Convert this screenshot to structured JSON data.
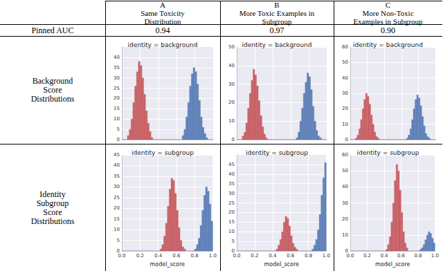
{
  "table": {
    "columns": [
      {
        "letter": "A",
        "title": [
          "Same Toxicity",
          "Distribution"
        ]
      },
      {
        "letter": "B",
        "title": [
          "More Toxic Examples in",
          "Subgroup"
        ]
      },
      {
        "letter": "C",
        "title": [
          "More Non-Toxic",
          "Examples in Subgroup"
        ]
      }
    ],
    "row_labels": [
      [
        "Pinned AUC"
      ],
      [
        "Background",
        "Score",
        "Distributions"
      ],
      [
        "Identity",
        "Subgroup",
        "Score",
        "Distributions"
      ]
    ],
    "pinned_auc": [
      0.94,
      0.97,
      {
        "value": 0.9,
        "label": "0.90"
      }
    ]
  },
  "chart_data": [
    {
      "type": "histogram",
      "title": "identity = background",
      "tick_labels": "y",
      "grid": true,
      "bins": [
        0,
        0.02,
        0.04,
        0.06,
        0.08,
        0.1,
        0.12,
        0.14,
        0.16,
        0.18,
        0.2,
        0.22,
        0.24,
        0.26,
        0.28,
        0.3,
        0.32,
        0.34,
        0.36,
        0.38,
        0.4,
        0.42,
        0.44,
        0.46,
        0.48,
        0.5,
        0.52,
        0.54,
        0.56,
        0.58,
        0.6,
        0.62,
        0.64,
        0.66,
        0.68,
        0.7,
        0.72,
        0.74,
        0.76,
        0.78,
        0.8,
        0.82,
        0.84,
        0.86,
        0.88,
        0.9,
        0.92,
        0.94,
        0.96,
        0.98,
        1
      ],
      "xlim": [
        0,
        1
      ],
      "xticks": [
        {
          "value": 0,
          "label": "0.0"
        },
        0.2,
        0.4,
        0.6,
        0.8,
        {
          "value": 1,
          "label": "1.0"
        }
      ],
      "ylim": [
        0,
        45
      ],
      "yticks": [
        0,
        5,
        10,
        15,
        20,
        25,
        30,
        35,
        40
      ],
      "series": [
        {
          "color": "#c44e52",
          "values": [
            0,
            0,
            0,
            2,
            5,
            10,
            18,
            26,
            33,
            38,
            36,
            30,
            22,
            14,
            8,
            4,
            1,
            0,
            0,
            0,
            0,
            0,
            0,
            0,
            0,
            0,
            0,
            0,
            0,
            0,
            0,
            0,
            0,
            0,
            0,
            0,
            0,
            0,
            0,
            0,
            0,
            0,
            0,
            0,
            0,
            0,
            0,
            0,
            0,
            0
          ]
        },
        {
          "color": "#4c72b0",
          "values": [
            0,
            0,
            0,
            0,
            0,
            0,
            0,
            0,
            0,
            0,
            0,
            0,
            0,
            0,
            0,
            0,
            0,
            0,
            0,
            0,
            0,
            0,
            0,
            0,
            0,
            0,
            0,
            0,
            0,
            0,
            0,
            0,
            0,
            2,
            5,
            11,
            18,
            26,
            32,
            35,
            33,
            27,
            19,
            11,
            6,
            3,
            1,
            0,
            0,
            0
          ]
        }
      ]
    },
    {
      "type": "histogram",
      "title": "identity = subgroup",
      "tick_labels": true,
      "grid": true,
      "xlabel": "model_score",
      "bins": [
        0,
        0.02,
        0.04,
        0.06,
        0.08,
        0.1,
        0.12,
        0.14,
        0.16,
        0.18,
        0.2,
        0.22,
        0.24,
        0.26,
        0.28,
        0.3,
        0.32,
        0.34,
        0.36,
        0.38,
        0.4,
        0.42,
        0.44,
        0.46,
        0.48,
        0.5,
        0.52,
        0.54,
        0.56,
        0.58,
        0.6,
        0.62,
        0.64,
        0.66,
        0.68,
        0.7,
        0.72,
        0.74,
        0.76,
        0.78,
        0.8,
        0.82,
        0.84,
        0.86,
        0.88,
        0.9,
        0.92,
        0.94,
        0.96,
        0.98,
        1
      ],
      "xlim": [
        0,
        1
      ],
      "xticks": [
        {
          "value": 0,
          "label": "0.0"
        },
        0.2,
        0.4,
        0.6,
        0.8,
        {
          "value": 1,
          "label": "1.0"
        }
      ],
      "ylim": [
        0,
        45
      ],
      "yticks": [
        0,
        5,
        10,
        15,
        20,
        25,
        30,
        35,
        40,
        45
      ],
      "series": [
        {
          "color": "#c44e52",
          "values": [
            0,
            0,
            0,
            0,
            0,
            0,
            0,
            0,
            0,
            0,
            0,
            0,
            0,
            0,
            0,
            0,
            0,
            0,
            0,
            0,
            0,
            1,
            3,
            7,
            13,
            21,
            29,
            34,
            33,
            27,
            19,
            11,
            5,
            2,
            1,
            0,
            0,
            0,
            0,
            0,
            0,
            0,
            0,
            0,
            0,
            0,
            0,
            0,
            0,
            0
          ]
        },
        {
          "color": "#4c72b0",
          "values": [
            0,
            0,
            0,
            0,
            0,
            0,
            0,
            0,
            0,
            0,
            0,
            0,
            0,
            0,
            0,
            0,
            0,
            0,
            0,
            0,
            0,
            0,
            0,
            0,
            0,
            0,
            0,
            0,
            0,
            0,
            0,
            0,
            0,
            0,
            0,
            0,
            0,
            0,
            0,
            0,
            1,
            3,
            6,
            12,
            19,
            26,
            30,
            28,
            22,
            14
          ]
        }
      ]
    },
    {
      "type": "histogram",
      "title": "identity = background",
      "tick_labels": "y",
      "grid": true,
      "bins": [
        0,
        0.02,
        0.04,
        0.06,
        0.08,
        0.1,
        0.12,
        0.14,
        0.16,
        0.18,
        0.2,
        0.22,
        0.24,
        0.26,
        0.28,
        0.3,
        0.32,
        0.34,
        0.36,
        0.38,
        0.4,
        0.42,
        0.44,
        0.46,
        0.48,
        0.5,
        0.52,
        0.54,
        0.56,
        0.58,
        0.6,
        0.62,
        0.64,
        0.66,
        0.68,
        0.7,
        0.72,
        0.74,
        0.76,
        0.78,
        0.8,
        0.82,
        0.84,
        0.86,
        0.88,
        0.9,
        0.92,
        0.94,
        0.96,
        0.98,
        1
      ],
      "xlim": [
        0,
        1
      ],
      "xticks": [
        {
          "value": 0,
          "label": "0.0"
        },
        0.2,
        0.4,
        0.6,
        0.8,
        {
          "value": 1,
          "label": "1.0"
        }
      ],
      "ylim": [
        0,
        50
      ],
      "yticks": [
        0,
        10,
        20,
        30,
        40,
        50
      ],
      "series": [
        {
          "color": "#c44e52",
          "values": [
            0,
            0,
            0,
            2,
            4,
            9,
            17,
            25,
            32,
            38,
            35,
            29,
            21,
            13,
            7,
            3,
            1,
            0,
            0,
            0,
            0,
            0,
            0,
            0,
            0,
            0,
            0,
            0,
            0,
            0,
            0,
            0,
            0,
            0,
            0,
            0,
            0,
            0,
            0,
            0,
            0,
            0,
            0,
            0,
            0,
            0,
            0,
            0,
            0,
            0
          ]
        },
        {
          "color": "#4c72b0",
          "values": [
            0,
            0,
            0,
            0,
            0,
            0,
            0,
            0,
            0,
            0,
            0,
            0,
            0,
            0,
            0,
            0,
            0,
            0,
            0,
            0,
            0,
            0,
            0,
            0,
            0,
            0,
            0,
            0,
            0,
            0,
            0,
            0,
            0,
            1,
            4,
            10,
            17,
            25,
            31,
            36,
            34,
            27,
            18,
            10,
            5,
            2,
            1,
            0,
            0,
            0
          ]
        }
      ]
    },
    {
      "type": "histogram",
      "title": "identity = subgroup",
      "tick_labels": true,
      "grid": true,
      "xlabel": "model_score",
      "bins": [
        0,
        0.02,
        0.04,
        0.06,
        0.08,
        0.1,
        0.12,
        0.14,
        0.16,
        0.18,
        0.2,
        0.22,
        0.24,
        0.26,
        0.28,
        0.3,
        0.32,
        0.34,
        0.36,
        0.38,
        0.4,
        0.42,
        0.44,
        0.46,
        0.48,
        0.5,
        0.52,
        0.54,
        0.56,
        0.58,
        0.6,
        0.62,
        0.64,
        0.66,
        0.68,
        0.7,
        0.72,
        0.74,
        0.76,
        0.78,
        0.8,
        0.82,
        0.84,
        0.86,
        0.88,
        0.9,
        0.92,
        0.94,
        0.96,
        0.98,
        1
      ],
      "xlim": [
        0,
        1
      ],
      "xticks": [
        {
          "value": 0,
          "label": "0.0"
        },
        0.2,
        0.4,
        0.6,
        0.8,
        {
          "value": 1,
          "label": "1.0"
        }
      ],
      "ylim": [
        0,
        50
      ],
      "yticks": [
        0,
        5,
        10,
        15,
        20,
        25,
        30,
        35,
        40,
        45
      ],
      "series": [
        {
          "color": "#c44e52",
          "values": [
            0,
            0,
            0,
            0,
            0,
            0,
            0,
            0,
            0,
            0,
            0,
            0,
            0,
            0,
            0,
            0,
            0,
            0,
            0,
            0,
            0,
            0,
            1,
            3,
            6,
            10,
            15,
            18,
            17,
            13,
            8,
            4,
            2,
            1,
            0,
            0,
            0,
            0,
            0,
            0,
            0,
            0,
            0,
            0,
            0,
            0,
            0,
            0,
            0,
            0
          ]
        },
        {
          "color": "#4c72b0",
          "values": [
            0,
            0,
            0,
            0,
            0,
            0,
            0,
            0,
            0,
            0,
            0,
            0,
            0,
            0,
            0,
            0,
            0,
            0,
            0,
            0,
            0,
            0,
            0,
            0,
            0,
            0,
            0,
            0,
            0,
            0,
            0,
            0,
            0,
            0,
            0,
            0,
            0,
            0,
            0,
            0,
            0,
            0,
            1,
            3,
            6,
            11,
            19,
            29,
            38,
            46
          ]
        }
      ]
    },
    {
      "type": "histogram",
      "title": "identity = background",
      "tick_labels": "y",
      "grid": true,
      "bins": [
        0,
        0.02,
        0.04,
        0.06,
        0.08,
        0.1,
        0.12,
        0.14,
        0.16,
        0.18,
        0.2,
        0.22,
        0.24,
        0.26,
        0.28,
        0.3,
        0.32,
        0.34,
        0.36,
        0.38,
        0.4,
        0.42,
        0.44,
        0.46,
        0.48,
        0.5,
        0.52,
        0.54,
        0.56,
        0.58,
        0.6,
        0.62,
        0.64,
        0.66,
        0.68,
        0.7,
        0.72,
        0.74,
        0.76,
        0.78,
        0.8,
        0.82,
        0.84,
        0.86,
        0.88,
        0.9,
        0.92,
        0.94,
        0.96,
        0.98,
        1
      ],
      "xlim": [
        0,
        1
      ],
      "xticks": [
        {
          "value": 0,
          "label": "0.0"
        },
        0.2,
        0.4,
        0.6,
        0.8,
        {
          "value": 1,
          "label": "1.0"
        }
      ],
      "ylim": [
        0,
        60
      ],
      "yticks": [
        0,
        10,
        20,
        30,
        40,
        50,
        60
      ],
      "series": [
        {
          "color": "#c44e52",
          "values": [
            0,
            0,
            0,
            1,
            3,
            7,
            13,
            20,
            26,
            30,
            28,
            23,
            16,
            10,
            5,
            2,
            1,
            0,
            0,
            0,
            0,
            0,
            0,
            0,
            0,
            0,
            0,
            0,
            0,
            0,
            0,
            0,
            0,
            0,
            0,
            0,
            0,
            0,
            0,
            0,
            0,
            0,
            0,
            0,
            0,
            0,
            0,
            0,
            0,
            0
          ]
        },
        {
          "color": "#4c72b0",
          "values": [
            0,
            0,
            0,
            0,
            0,
            0,
            0,
            0,
            0,
            0,
            0,
            0,
            0,
            0,
            0,
            0,
            0,
            0,
            0,
            0,
            0,
            0,
            0,
            0,
            0,
            0,
            0,
            0,
            0,
            0,
            0,
            0,
            0,
            1,
            3,
            7,
            13,
            20,
            26,
            29,
            27,
            22,
            15,
            9,
            4,
            2,
            1,
            0,
            0,
            0
          ]
        }
      ]
    },
    {
      "type": "histogram",
      "title": "identity = subgroup",
      "tick_labels": true,
      "grid": true,
      "xlabel": "model_score",
      "bins": [
        0,
        0.02,
        0.04,
        0.06,
        0.08,
        0.1,
        0.12,
        0.14,
        0.16,
        0.18,
        0.2,
        0.22,
        0.24,
        0.26,
        0.28,
        0.3,
        0.32,
        0.34,
        0.36,
        0.38,
        0.4,
        0.42,
        0.44,
        0.46,
        0.48,
        0.5,
        0.52,
        0.54,
        0.56,
        0.58,
        0.6,
        0.62,
        0.64,
        0.66,
        0.68,
        0.7,
        0.72,
        0.74,
        0.76,
        0.78,
        0.8,
        0.82,
        0.84,
        0.86,
        0.88,
        0.9,
        0.92,
        0.94,
        0.96,
        0.98,
        1
      ],
      "xlim": [
        0,
        1
      ],
      "xticks": [
        {
          "value": 0,
          "label": "0.0"
        },
        0.2,
        0.4,
        0.6,
        0.8,
        {
          "value": 1,
          "label": "1.0"
        }
      ],
      "ylim": [
        0,
        60
      ],
      "yticks": [
        0,
        10,
        20,
        30,
        40,
        50,
        60
      ],
      "series": [
        {
          "color": "#c44e52",
          "values": [
            0,
            0,
            0,
            0,
            0,
            0,
            0,
            0,
            0,
            0,
            0,
            0,
            0,
            0,
            0,
            0,
            0,
            0,
            0,
            0,
            0,
            1,
            4,
            9,
            18,
            30,
            44,
            54,
            50,
            38,
            24,
            12,
            5,
            2,
            0,
            0,
            0,
            0,
            0,
            0,
            0,
            0,
            0,
            0,
            0,
            0,
            0,
            0,
            0,
            0
          ]
        },
        {
          "color": "#4c72b0",
          "values": [
            0,
            0,
            0,
            0,
            0,
            0,
            0,
            0,
            0,
            0,
            0,
            0,
            0,
            0,
            0,
            0,
            0,
            0,
            0,
            0,
            0,
            0,
            0,
            0,
            0,
            0,
            0,
            0,
            0,
            0,
            0,
            0,
            0,
            0,
            0,
            0,
            0,
            0,
            0,
            0,
            0,
            1,
            2,
            4,
            7,
            10,
            12,
            11,
            8,
            5
          ]
        }
      ]
    }
  ]
}
